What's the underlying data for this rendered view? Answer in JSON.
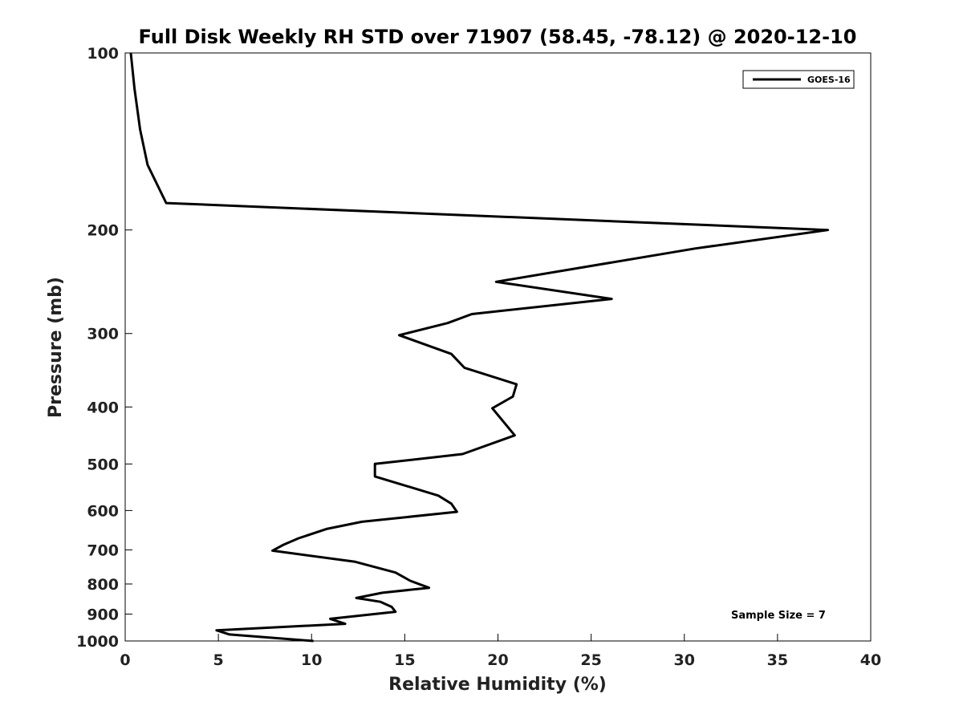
{
  "chart_data": {
    "type": "line",
    "title": "Full Disk Weekly RH STD over 71907 (58.45, -78.12) @ 2020-12-10",
    "xlabel": "Relative Humidity (%)",
    "ylabel": "Pressure (mb)",
    "xlim": [
      0,
      40
    ],
    "ylim": [
      100,
      1000
    ],
    "y_scale": "log",
    "y_reversed": true,
    "x_ticks": [
      0,
      5,
      10,
      15,
      20,
      25,
      30,
      35,
      40
    ],
    "y_ticks": [
      100,
      200,
      300,
      400,
      500,
      600,
      700,
      800,
      900,
      1000
    ],
    "grid": false,
    "legend_position": "top-right",
    "annotation": "Sample Size = 7",
    "line_color": "#000000",
    "series": [
      {
        "name": "GOES-16",
        "points": [
          [
            0.3,
            100
          ],
          [
            0.5,
            115
          ],
          [
            0.8,
            135
          ],
          [
            1.2,
            155
          ],
          [
            2.2,
            180
          ],
          [
            37.7,
            200
          ],
          [
            30.6,
            215
          ],
          [
            19.9,
            245
          ],
          [
            26.1,
            262
          ],
          [
            18.6,
            278
          ],
          [
            17.3,
            288
          ],
          [
            14.7,
            302
          ],
          [
            17.5,
            325
          ],
          [
            18.2,
            343
          ],
          [
            21.0,
            366
          ],
          [
            20.8,
            384
          ],
          [
            19.7,
            402
          ],
          [
            20.9,
            447
          ],
          [
            18.1,
            481
          ],
          [
            13.4,
            500
          ],
          [
            13.4,
            525
          ],
          [
            16.8,
            566
          ],
          [
            17.5,
            584
          ],
          [
            17.8,
            603
          ],
          [
            12.7,
            627
          ],
          [
            10.8,
            645
          ],
          [
            9.3,
            669
          ],
          [
            8.5,
            686
          ],
          [
            7.9,
            702
          ],
          [
            12.3,
            733
          ],
          [
            14.5,
            765
          ],
          [
            15.3,
            790
          ],
          [
            16.3,
            812
          ],
          [
            13.8,
            828
          ],
          [
            12.4,
            845
          ],
          [
            13.7,
            858
          ],
          [
            14.3,
            875
          ],
          [
            14.5,
            892
          ],
          [
            11.0,
            917
          ],
          [
            11.8,
            935
          ],
          [
            4.9,
            959
          ],
          [
            5.6,
            975
          ],
          [
            10.1,
            1000
          ]
        ]
      }
    ]
  }
}
